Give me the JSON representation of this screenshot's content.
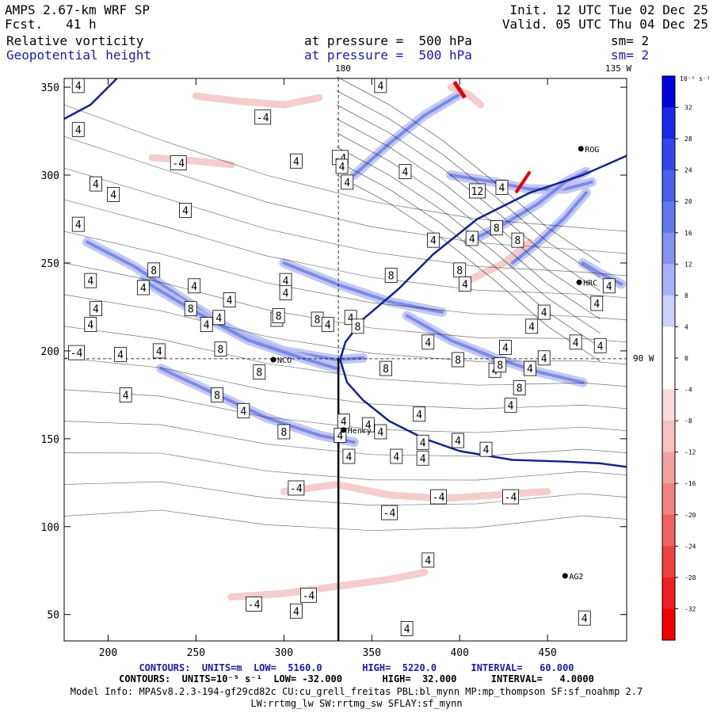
{
  "header": {
    "model": "AMPS 2.67-km WRF SP",
    "forecast": "Fcst.   41 h",
    "init": "Init. 12 UTC Tue 02 Dec 25",
    "valid": "Valid. 05 UTC Thu 04 Dec 25",
    "field1_name": "Relative vorticity",
    "field1_level": "at pressure =  500 hPa",
    "field1_smooth": "sm= 2",
    "field2_name": "Geopotential height",
    "field2_level": "at pressure =  500 hPa",
    "field2_smooth": "sm= 2"
  },
  "map_labels": {
    "lon_180": "180",
    "lon_135w": "135 W",
    "lon_90w": "90 W"
  },
  "stations": [
    {
      "name": "NCO",
      "x": 294,
      "y": 195
    },
    {
      "name": "Henry",
      "x": 334,
      "y": 155
    },
    {
      "name": "HRC",
      "x": 468,
      "y": 239
    },
    {
      "name": "AG2",
      "x": 460,
      "y": 72
    },
    {
      "name": "ROG",
      "x": 469,
      "y": 315
    }
  ],
  "chart_data": {
    "type": "contour",
    "title": "Relative vorticity and Geopotential height at 500 hPa",
    "x_ticks": [
      200,
      250,
      300,
      350,
      400,
      450
    ],
    "y_ticks": [
      50,
      100,
      150,
      200,
      250,
      300,
      350
    ],
    "xlim": [
      175,
      495
    ],
    "ylim": [
      35,
      355
    ],
    "colorbar": {
      "unit": "10⁻⁵ s⁻¹",
      "ticks": [
        32,
        28,
        24,
        20,
        16,
        12,
        8,
        4,
        0,
        -4,
        -8,
        -12,
        -16,
        -20,
        -24,
        -28,
        -32
      ],
      "colors": [
        "#0000e0",
        "#1c28e8",
        "#3446ea",
        "#4a5eec",
        "#6478ee",
        "#8492f2",
        "#a8b2f6",
        "#ccd2fa",
        "#ffffff",
        "#ffffff",
        "#f8dcdc",
        "#f4c0c0",
        "#f2a2a2",
        "#f08282",
        "#ee6262",
        "#ee4242",
        "#ee2020",
        "#f00000"
      ]
    },
    "contour_labels": [
      {
        "v": "4",
        "x": 183,
        "y": 351
      },
      {
        "v": "-4",
        "x": 288,
        "y": 333
      },
      {
        "v": "4",
        "x": 183,
        "y": 326
      },
      {
        "v": "-4",
        "x": 240,
        "y": 307
      },
      {
        "v": "4",
        "x": 307,
        "y": 308
      },
      {
        "v": "-4",
        "x": 332,
        "y": 310
      },
      {
        "v": "4",
        "x": 336,
        "y": 296
      },
      {
        "v": "4",
        "x": 355,
        "y": 351
      },
      {
        "v": "4",
        "x": 369,
        "y": 302
      },
      {
        "v": "4",
        "x": 193,
        "y": 295
      },
      {
        "v": "4",
        "x": 203,
        "y": 289
      },
      {
        "v": "4",
        "x": 244,
        "y": 280
      },
      {
        "v": "4",
        "x": 183,
        "y": 272
      },
      {
        "v": "8",
        "x": 226,
        "y": 246
      },
      {
        "v": "4",
        "x": 190,
        "y": 240
      },
      {
        "v": "4",
        "x": 220,
        "y": 236
      },
      {
        "v": "4",
        "x": 269,
        "y": 229
      },
      {
        "v": "4",
        "x": 249,
        "y": 237
      },
      {
        "v": "4",
        "x": 301,
        "y": 240
      },
      {
        "v": "8",
        "x": 361,
        "y": 243
      },
      {
        "v": "4",
        "x": 301,
        "y": 233
      },
      {
        "v": "4",
        "x": 193,
        "y": 224
      },
      {
        "v": "8",
        "x": 247,
        "y": 224
      },
      {
        "v": "4",
        "x": 296,
        "y": 218
      },
      {
        "v": "8",
        "x": 297,
        "y": 220
      },
      {
        "v": "4",
        "x": 256,
        "y": 215
      },
      {
        "v": "8",
        "x": 319,
        "y": 218
      },
      {
        "v": "4",
        "x": 338,
        "y": 219
      },
      {
        "v": "8",
        "x": 342,
        "y": 214
      },
      {
        "v": "4",
        "x": 325,
        "y": 215
      },
      {
        "v": "4",
        "x": 263,
        "y": 219
      },
      {
        "v": "4",
        "x": 190,
        "y": 215
      },
      {
        "v": "-4",
        "x": 182,
        "y": 199
      },
      {
        "v": "4",
        "x": 229,
        "y": 200
      },
      {
        "v": "4",
        "x": 207,
        "y": 198
      },
      {
        "v": "8",
        "x": 264,
        "y": 201
      },
      {
        "v": "8",
        "x": 399,
        "y": 195
      },
      {
        "v": "4",
        "x": 382,
        "y": 205
      },
      {
        "v": "8",
        "x": 286,
        "y": 188
      },
      {
        "v": "4",
        "x": 210,
        "y": 175
      },
      {
        "v": "8",
        "x": 262,
        "y": 175
      },
      {
        "v": "4",
        "x": 277,
        "y": 166
      },
      {
        "v": "8",
        "x": 300,
        "y": 154
      },
      {
        "v": "4",
        "x": 334,
        "y": 160
      },
      {
        "v": "4",
        "x": 348,
        "y": 158
      },
      {
        "v": "4",
        "x": 429,
        "y": 169
      },
      {
        "v": "8",
        "x": 434,
        "y": 179
      },
      {
        "v": "4",
        "x": 466,
        "y": 205
      },
      {
        "v": "4",
        "x": 420,
        "y": 189
      },
      {
        "v": "4",
        "x": 440,
        "y": 190
      },
      {
        "v": "8",
        "x": 358,
        "y": 190
      },
      {
        "v": "8",
        "x": 423,
        "y": 192
      },
      {
        "v": "4",
        "x": 377,
        "y": 164
      },
      {
        "v": "4",
        "x": 332,
        "y": 152
      },
      {
        "v": "4",
        "x": 355,
        "y": 154
      },
      {
        "v": "4",
        "x": 379,
        "y": 148
      },
      {
        "v": "4",
        "x": 415,
        "y": 144
      },
      {
        "v": "4",
        "x": 399,
        "y": 149
      },
      {
        "v": "4",
        "x": 379,
        "y": 139
      },
      {
        "v": "4",
        "x": 364,
        "y": 140
      },
      {
        "v": "4",
        "x": 337,
        "y": 140
      },
      {
        "v": "-4",
        "x": 307,
        "y": 122
      },
      {
        "v": "-4",
        "x": 388,
        "y": 117
      },
      {
        "v": "-4",
        "x": 429,
        "y": 117
      },
      {
        "v": "-4",
        "x": 360,
        "y": 108
      },
      {
        "v": "4",
        "x": 382,
        "y": 81
      },
      {
        "v": "-4",
        "x": 314,
        "y": 61
      },
      {
        "v": "4",
        "x": 307,
        "y": 52
      },
      {
        "v": "-4",
        "x": 283,
        "y": 56
      },
      {
        "v": "4",
        "x": 471,
        "y": 48
      },
      {
        "v": "4",
        "x": 370,
        "y": 42
      },
      {
        "v": "12",
        "x": 410,
        "y": 291
      },
      {
        "v": "4",
        "x": 424,
        "y": 293
      },
      {
        "v": "8",
        "x": 421,
        "y": 270
      },
      {
        "v": "8",
        "x": 433,
        "y": 263
      },
      {
        "v": "4",
        "x": 407,
        "y": 264
      },
      {
        "v": "8",
        "x": 400,
        "y": 246
      },
      {
        "v": "4",
        "x": 403,
        "y": 238
      },
      {
        "v": "4",
        "x": 485,
        "y": 237
      },
      {
        "v": "4",
        "x": 478,
        "y": 227
      },
      {
        "v": "4",
        "x": 448,
        "y": 222
      },
      {
        "v": "4",
        "x": 441,
        "y": 214
      },
      {
        "v": "4",
        "x": 426,
        "y": 202
      },
      {
        "v": "4",
        "x": 448,
        "y": 196
      },
      {
        "v": "4",
        "x": 480,
        "y": 203
      },
      {
        "v": "4",
        "x": 385,
        "y": 263
      },
      {
        "v": "4",
        "x": 333,
        "y": 305
      }
    ]
  },
  "footer": {
    "line1": "CONTOURS:  UNITS=m  LOW=  5160.0       HIGH=  5220.0      INTERVAL=   60.000",
    "line2": "CONTOURS:  UNITS=10⁻⁵ s⁻¹  LOW= -32.000       HIGH=  32.000      INTERVAL=   4.0000",
    "line3": "Model Info: MPASv8.2.3-194-gf29cd82c CU:cu_grell_freitas PBL:bl_mynn MP:mp_thompson SF:sf_noahmp 2.7",
    "line4": "LW:rrtmg_lw SW:rrtmg_sw SFLAY:sf_mynn"
  }
}
